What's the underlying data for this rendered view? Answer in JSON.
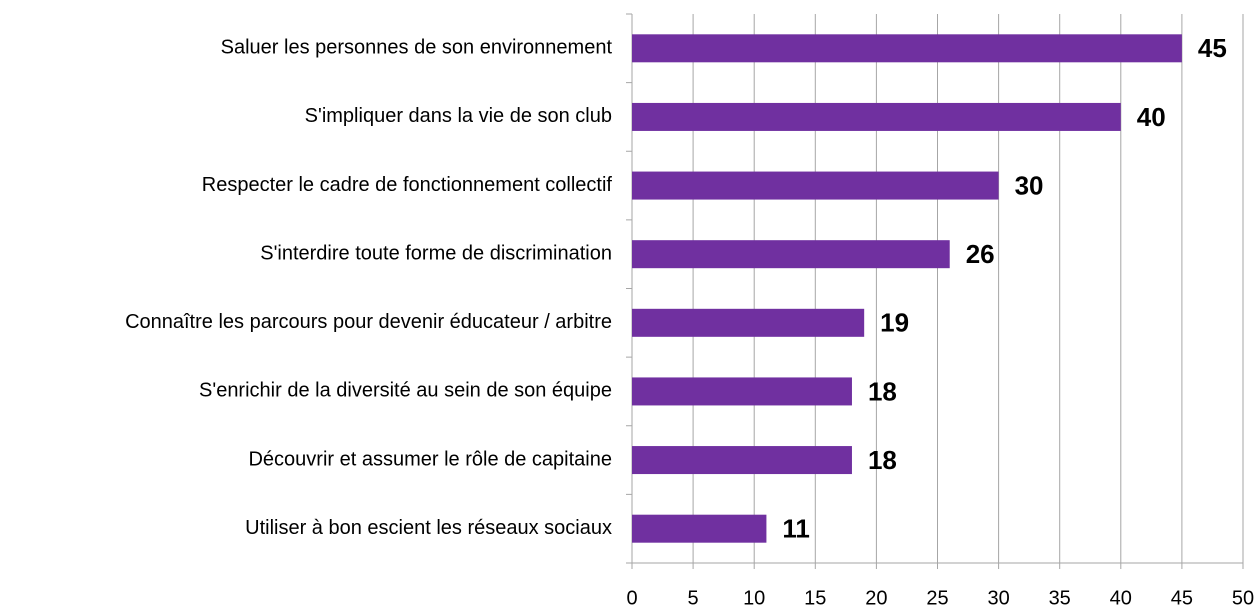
{
  "chart_data": {
    "type": "bar",
    "orientation": "horizontal",
    "categories": [
      "Saluer les personnes de son environnement",
      "S'impliquer dans la vie de son club",
      "Respecter le cadre de fonctionnement collectif",
      "S'interdire toute forme de discrimination",
      "Connaître les parcours pour devenir éducateur / arbitre",
      "S'enrichir de la diversité au sein de son équipe",
      "Découvrir et assumer le rôle de capitaine",
      "Utiliser à bon escient les réseaux sociaux"
    ],
    "values": [
      45,
      40,
      30,
      26,
      19,
      18,
      18,
      11
    ],
    "color": "#7030a0",
    "xlim": [
      0,
      50
    ],
    "xticks": [
      0,
      5,
      10,
      15,
      20,
      25,
      30,
      35,
      40,
      45,
      50
    ],
    "grid": true
  }
}
